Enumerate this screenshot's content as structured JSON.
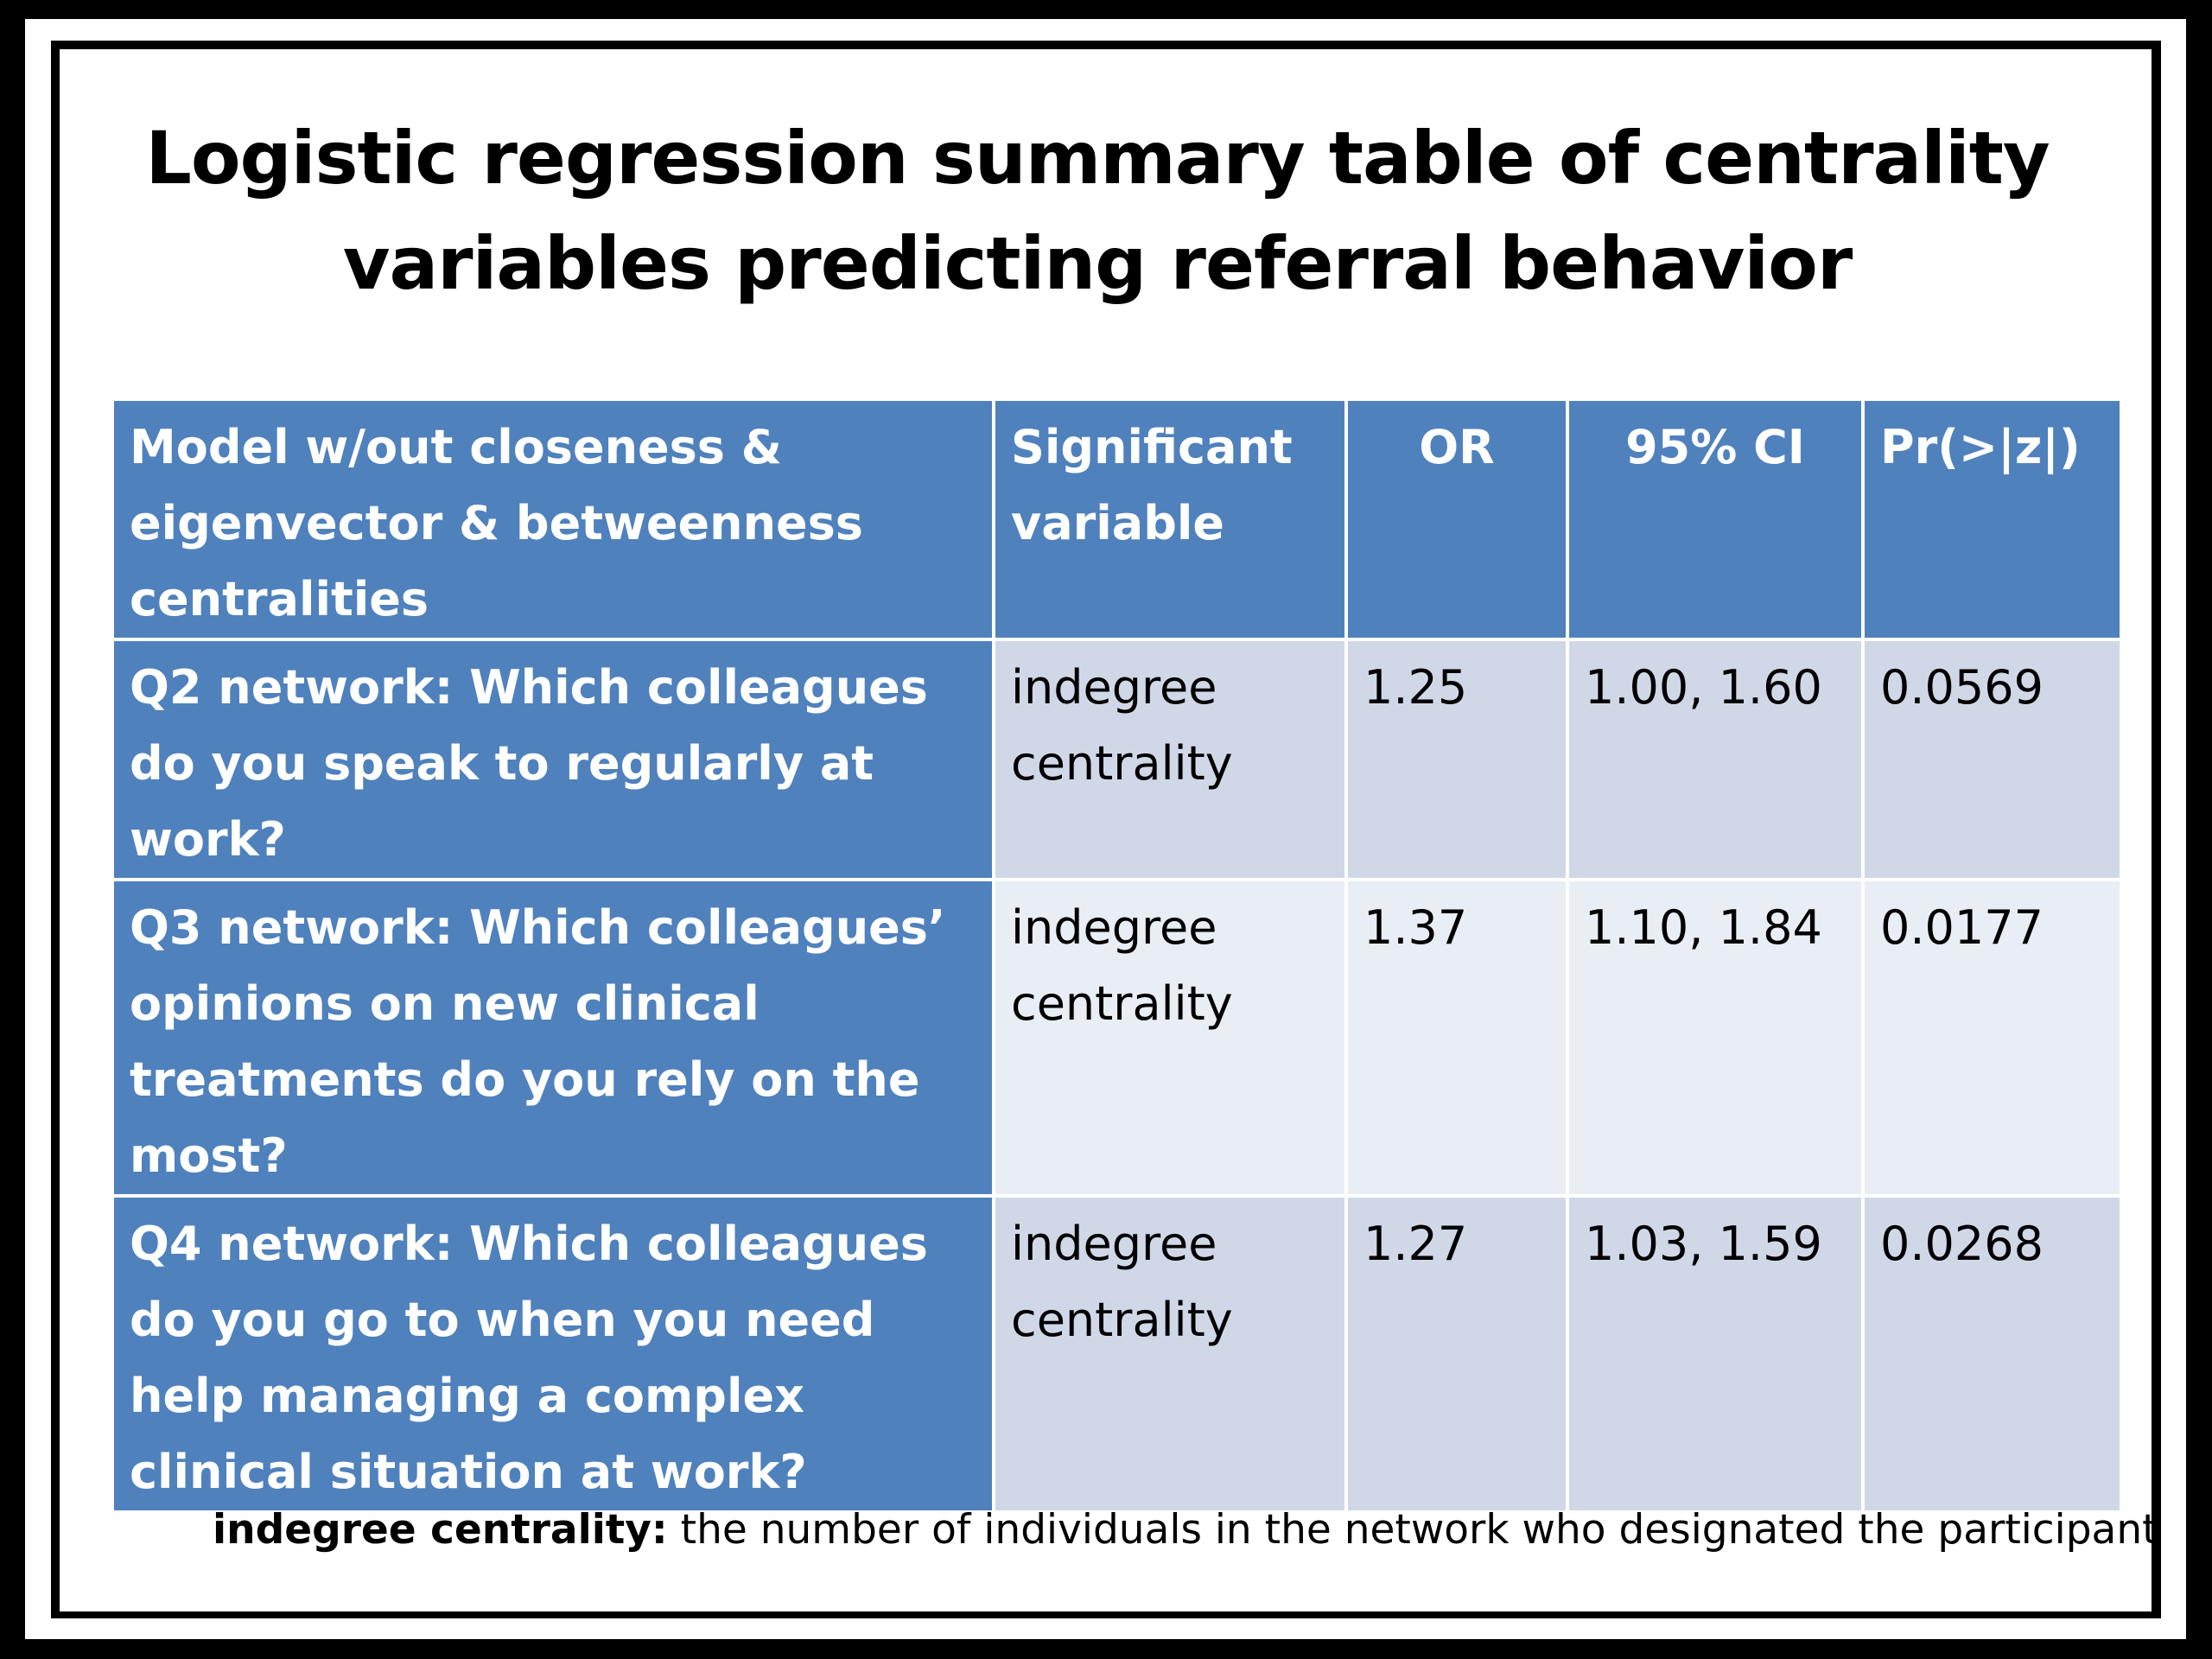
{
  "title": {
    "line1": "Logistic regression summary table of centrality",
    "line2": "variables predicting referral behavior"
  },
  "table": {
    "headers": {
      "model": "Model w/out closeness & eigenvector & betweenness centralities",
      "variable": "Significant variable",
      "or": "OR",
      "ci": "95% CI",
      "p": "Pr(>|z|)"
    },
    "rows": [
      {
        "model": "Q2 network: Which colleagues do you speak to regularly at work?",
        "variable": "indegree centrality",
        "or": "1.25",
        "ci": "1.00, 1.60",
        "p": "0.0569"
      },
      {
        "model": "Q3 network: Which colleagues’ opinions on new clinical treatments do you rely on the most?",
        "variable": "indegree centrality",
        "or": "1.37",
        "ci": "1.10, 1.84",
        "p": "0.0177"
      },
      {
        "model": "Q4 network: Which colleagues do you go to when you need help managing a complex clinical situation at work?",
        "variable": "indegree centrality",
        "or": "1.27",
        "ci": "1.03, 1.59",
        "p": "0.0268"
      }
    ]
  },
  "footnote": {
    "term": "indegree centrality:",
    "definition": " the number of individuals in the network who designated the participant"
  },
  "colors": {
    "header_blue": "#4f81bd",
    "band_dark": "#d0d8e8",
    "band_light": "#e9edf4"
  }
}
